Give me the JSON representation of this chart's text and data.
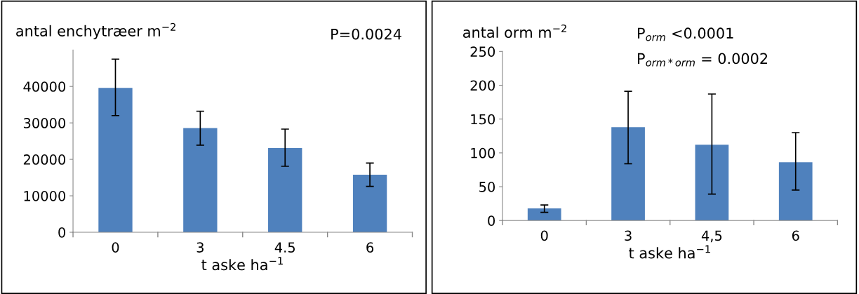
{
  "chart_data": [
    {
      "type": "bar",
      "title": "antal enchytræer m$^{−2}$",
      "xlabel": "t aske ha$^{−1}$",
      "categories": [
        "0",
        "3",
        "4.5",
        "6"
      ],
      "values": [
        39600,
        28600,
        23100,
        15800
      ],
      "color": "#4f81bd",
      "errors": [
        [
          32000,
          47500
        ],
        [
          23900,
          33200
        ],
        [
          18100,
          28300
        ],
        [
          12600,
          19000
        ]
      ],
      "ylim": [
        0,
        50000
      ],
      "yticks": [
        0,
        10000,
        20000,
        30000,
        40000
      ],
      "grid": false,
      "legend": false,
      "annotations": [
        "P=0.0024"
      ]
    },
    {
      "type": "bar",
      "title": "antal orm m$^{−2}$",
      "xlabel": "t aske ha$^{−1}$",
      "categories": [
        "0",
        "3",
        "4,5",
        "6"
      ],
      "values": [
        18,
        138,
        112,
        86
      ],
      "color": "#4f81bd",
      "errors": [
        [
          12,
          23
        ],
        [
          84,
          191
        ],
        [
          39,
          187
        ],
        [
          45,
          130
        ]
      ],
      "ylim": [
        0,
        250
      ],
      "yticks": [
        0,
        50,
        100,
        150,
        200,
        250
      ],
      "grid": false,
      "legend": false,
      "annotations": [
        "P$_{orm}$ <0.0001",
        "P$_{orm*orm}$ = 0.0002"
      ]
    }
  ]
}
